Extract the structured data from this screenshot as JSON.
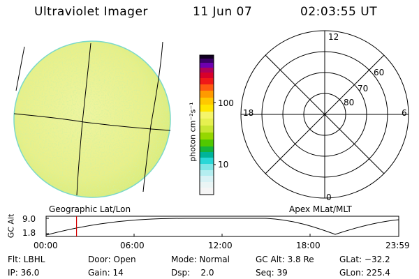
{
  "header": {
    "instrument": "Ultraviolet Imager",
    "date": "11 Jun 07",
    "time": "02:03:55 UT"
  },
  "colorbar": {
    "units": "photon cm⁻²s⁻¹",
    "tick_labels": [
      "100",
      "10"
    ]
  },
  "polar_plot": {
    "mlt_labels": [
      "12",
      "18",
      "6",
      "0"
    ],
    "lat_labels": [
      "60",
      "70",
      "80"
    ]
  },
  "plot_labels": {
    "geo": "Geographic Lat/Lon",
    "apex": "Apex MLat/MLT",
    "gc_alt_axis": "GC Alt"
  },
  "alt_plot": {
    "y_ticks": [
      "9.0",
      "1.8"
    ],
    "x_ticks": [
      "00:00",
      "06:00",
      "12:00",
      "18:00",
      "23:59"
    ],
    "current_time_hours": 2.07,
    "marker_color": "#d40000"
  },
  "info": {
    "flt": "Flt: LBHL",
    "ip": "IP: 36.0",
    "door": "Door: Open",
    "gain": "Gain: 14",
    "mode": "Mode: Normal",
    "dsp": "Dsp:    2.0",
    "gc_alt": "GC Alt: 3.8 Re",
    "seq": "Seq: 39",
    "glat": "GLat: −32.2",
    "glon": "GLon: 225.4"
  }
}
